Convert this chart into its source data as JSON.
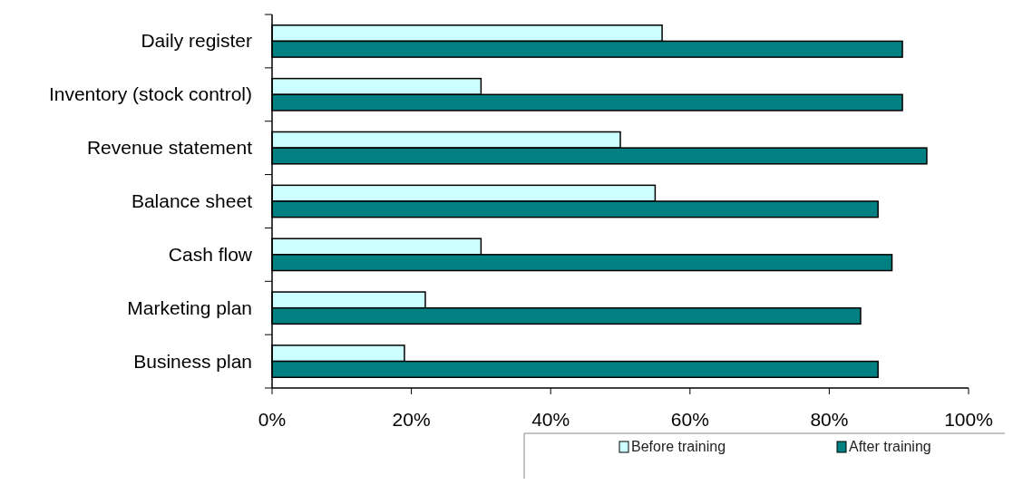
{
  "chart_data": {
    "type": "bar",
    "orientation": "horizontal",
    "categories": [
      "Daily register",
      "Inventory (stock control)",
      "Revenue statement",
      "Balance sheet",
      "Cash flow",
      "Marketing plan",
      "Business plan"
    ],
    "series": [
      {
        "name": "Before training",
        "color": "#ccffff",
        "values": [
          56,
          30,
          50,
          55,
          30,
          22,
          19
        ]
      },
      {
        "name": "After training",
        "color": "#008080",
        "values": [
          90.5,
          90.5,
          94,
          87,
          89,
          84.5,
          87
        ]
      }
    ],
    "xlim": [
      0,
      100
    ],
    "xticks": [
      {
        "value": 0,
        "label": "0%"
      },
      {
        "value": 20,
        "label": "20%"
      },
      {
        "value": 40,
        "label": "40%"
      },
      {
        "value": 60,
        "label": "60%"
      },
      {
        "value": 80,
        "label": "80%"
      },
      {
        "value": 100,
        "label": "100%"
      }
    ],
    "grid": false,
    "legend": "bottom"
  }
}
